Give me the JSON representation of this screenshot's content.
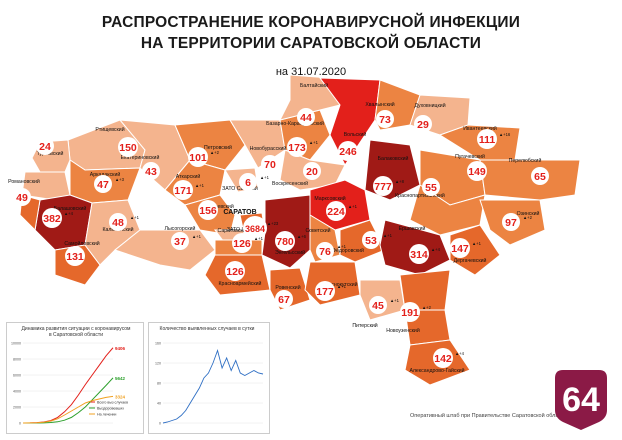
{
  "header": {
    "line1": "РАСПРОСТРАНЕНИЕ КОРОНАВИРУСНОЙ ИНФЕКЦИИ",
    "line2": "НА ТЕРРИТОРИИ САРАТОВСКОЙ ОБЛАСТИ",
    "date": "на 31.07.2020"
  },
  "colors": {
    "light": "#f4b48e",
    "medium": "#ec8442",
    "orange": "#e5682b",
    "red": "#e3201b",
    "dark": "#a01a16",
    "circle_text": "#e3201b",
    "badge": "#8b1a46"
  },
  "districts": [
    {
      "name": "Ртищевский",
      "count": "150",
      "delta": ""
    },
    {
      "name": "Турковский",
      "count": "24",
      "delta": ""
    },
    {
      "name": "Аркадакский",
      "count": "47",
      "delta": "+3"
    },
    {
      "name": "Романовский",
      "count": "",
      "delta": ""
    },
    {
      "name": "Балашовский",
      "count": "382",
      "delta": "+4"
    },
    {
      "name": "",
      "count": "49",
      "delta": ""
    },
    {
      "name": "Самойловский",
      "count": "131",
      "delta": ""
    },
    {
      "name": "Екатериновский",
      "count": "43",
      "delta": ""
    },
    {
      "name": "Калининский",
      "count": "48",
      "delta": "+1"
    },
    {
      "name": "Петровский",
      "count": "101",
      "delta": "+2"
    },
    {
      "name": "Аткарский",
      "count": "171",
      "delta": "+1"
    },
    {
      "name": "Татищевский",
      "count": "156",
      "delta": ""
    },
    {
      "name": "ЗАТО Светлый",
      "count": "6",
      "delta": "+1"
    },
    {
      "name": "Лысогорский",
      "count": "37",
      "delta": "+1"
    },
    {
      "name": "ЗАТО Шиханы",
      "count": "",
      "delta": ""
    },
    {
      "name": "Новобурасский",
      "count": "70",
      "delta": ""
    },
    {
      "name": "Базарно-Карабулакский",
      "count": "173",
      "delta": "+1"
    },
    {
      "name": "Балтайский",
      "count": "44",
      "delta": ""
    },
    {
      "name": "Вольский",
      "count": "246",
      "delta": ""
    },
    {
      "name": "Хвалынский",
      "count": "73",
      "delta": ""
    },
    {
      "name": "Духовницкий",
      "count": "29",
      "delta": ""
    },
    {
      "name": "Воскресенский",
      "count": "20",
      "delta": ""
    },
    {
      "name": "Балаковский",
      "count": "777",
      "delta": "+8"
    },
    {
      "name": "Ивантеевский",
      "count": "111",
      "delta": "+16"
    },
    {
      "name": "Пугачевский",
      "count": "149",
      "delta": ""
    },
    {
      "name": "Перелюбский",
      "count": "65",
      "delta": ""
    },
    {
      "name": "Краснопартизанский",
      "count": "55",
      "delta": ""
    },
    {
      "name": "Марксовский",
      "count": "224",
      "delta": "+1"
    },
    {
      "name": "САРАТОВ",
      "count": "3684",
      "delta": "+23"
    },
    {
      "name": "Энгельсский",
      "count": "780",
      "delta": "+6"
    },
    {
      "name": "Саратовский",
      "count": "126",
      "delta": "+1"
    },
    {
      "name": "Советский",
      "count": "76",
      "delta": "+1"
    },
    {
      "name": "Фёдоровский",
      "count": "53",
      "delta": "+1"
    },
    {
      "name": "Ершовский",
      "count": "314",
      "delta": "+4"
    },
    {
      "name": "Дергачевский",
      "count": "147",
      "delta": "+1"
    },
    {
      "name": "Озинский",
      "count": "97",
      "delta": "+2"
    },
    {
      "name": "Красноармейский",
      "count": "126",
      "delta": ""
    },
    {
      "name": "Ровенский",
      "count": "67",
      "delta": ""
    },
    {
      "name": "Краснокутский",
      "count": "177",
      "delta": "+1"
    },
    {
      "name": "Питерский",
      "count": "45",
      "delta": "+1"
    },
    {
      "name": "",
      "count": "191",
      "delta": "+2"
    },
    {
      "name": "Новоузенский",
      "count": "",
      "delta": ""
    },
    {
      "name": "Александрово-Гайский",
      "count": "142",
      "delta": "+4"
    }
  ],
  "chart_data": [
    {
      "type": "line",
      "title": "Динамика развития ситуации с коронавирусом в Саратовской области",
      "series": [
        {
          "name": "Всего выз случаев",
          "values": [
            0,
            10,
            40,
            120,
            300,
            700,
            1400,
            2300,
            3500,
            4800,
            6000,
            7200,
            8400,
            9406
          ]
        },
        {
          "name": "Выздоровевших",
          "values": [
            0,
            0,
            5,
            20,
            60,
            150,
            350,
            700,
            1300,
            2000,
            2900,
            3800,
            4700,
            5642
          ]
        },
        {
          "name": "На лечении",
          "values": [
            0,
            10,
            35,
            100,
            230,
            520,
            1000,
            1500,
            2000,
            2500,
            2800,
            3000,
            3200,
            3324
          ]
        }
      ],
      "end_labels": [
        "9406",
        "5642",
        "3324"
      ],
      "ylim": [
        0,
        10000
      ]
    },
    {
      "type": "line",
      "title": "Количество выявленных случаев в сутки",
      "series": [
        {
          "name": "",
          "values": [
            0,
            2,
            5,
            8,
            15,
            25,
            40,
            55,
            70,
            90,
            100,
            120,
            145,
            110,
            130,
            105,
            125,
            100,
            95,
            100,
            105,
            100,
            98
          ]
        }
      ],
      "ylim": [
        0,
        160
      ]
    }
  ],
  "footer": {
    "credit": "Оперативный штаб при Правительстве Саратовской области",
    "badge": "64"
  }
}
